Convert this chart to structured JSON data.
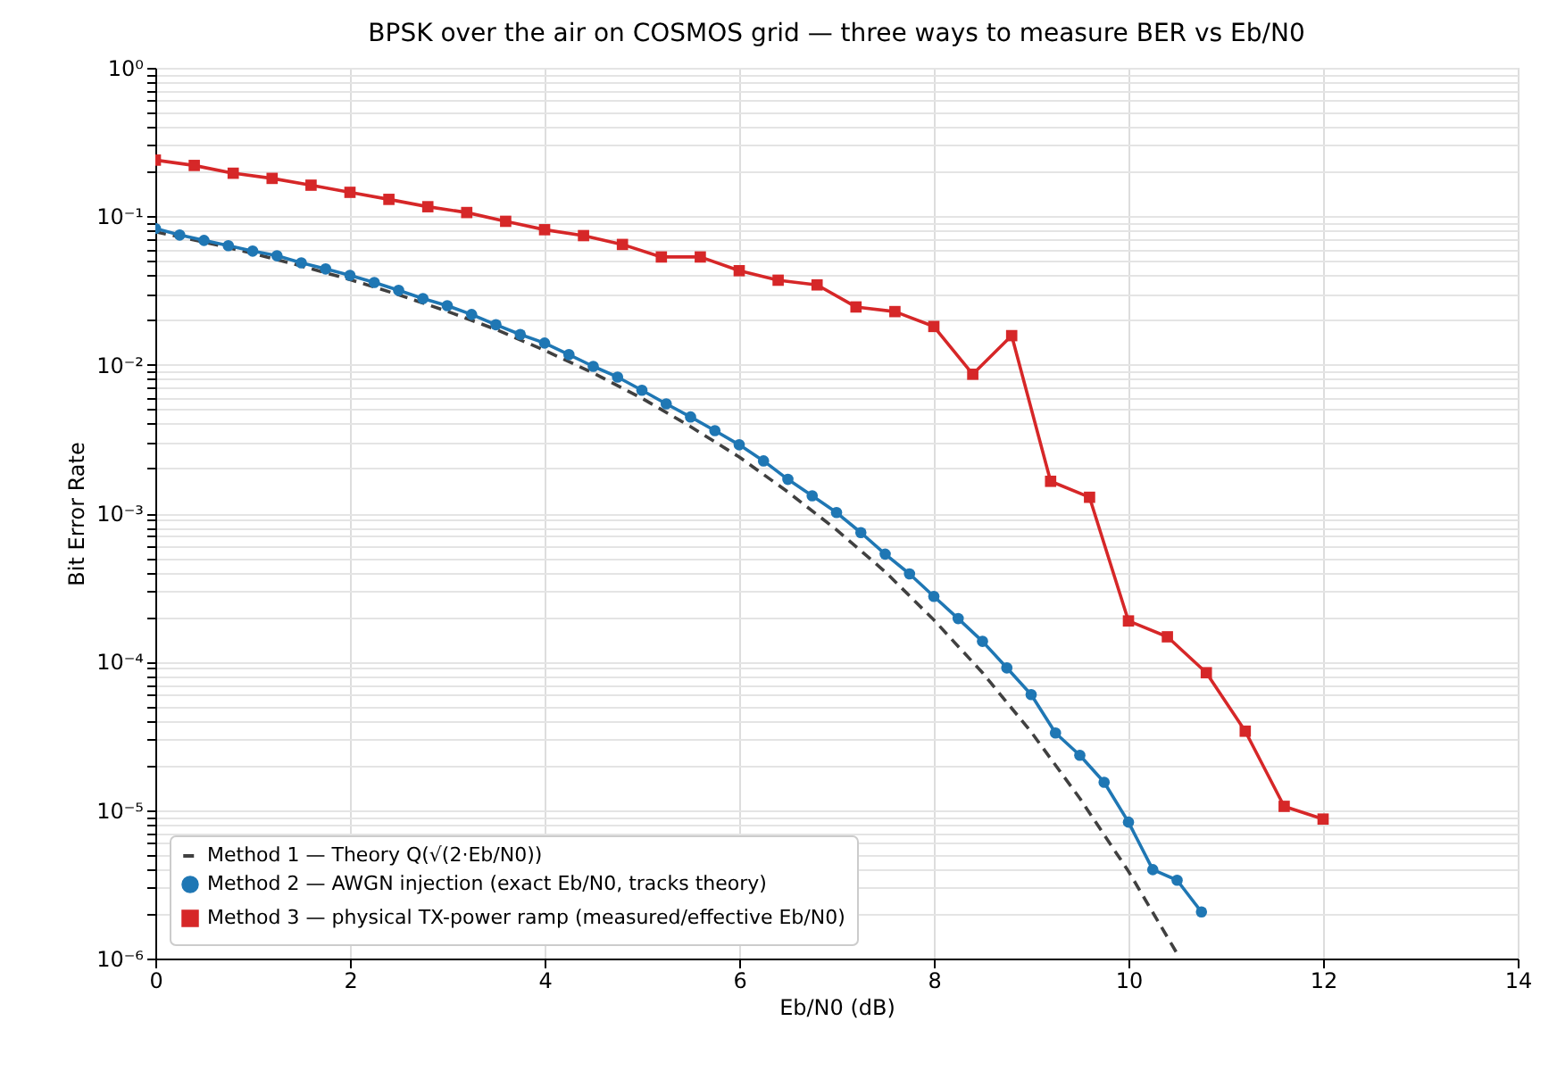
{
  "chart_data": {
    "type": "line",
    "title": "BPSK over the air on COSMOS grid — three ways to measure BER vs Eb/N0",
    "xlabel": "Eb/N0  (dB)",
    "ylabel": "Bit Error Rate",
    "log": "y",
    "grid": true,
    "legend": "bottom left",
    "xlim": [
      0,
      14
    ],
    "xticks": [
      0,
      2,
      4,
      6,
      8,
      10,
      12,
      14
    ],
    "ylim": [
      1e-06,
      1
    ],
    "yticks": [
      {
        "value": 1e-06,
        "label": "10⁻⁶"
      },
      {
        "value": 2e-06,
        "label": null
      },
      {
        "value": 3e-06,
        "label": null
      },
      {
        "value": 4e-06,
        "label": null
      },
      {
        "value": 5e-06,
        "label": null
      },
      {
        "value": 6e-06,
        "label": null
      },
      {
        "value": 7e-06,
        "label": null
      },
      {
        "value": 8e-06,
        "label": null
      },
      {
        "value": 9e-06,
        "label": null
      },
      {
        "value": 1e-05,
        "label": "10⁻⁵"
      },
      {
        "value": 2e-05,
        "label": null
      },
      {
        "value": 3e-05,
        "label": null
      },
      {
        "value": 4e-05,
        "label": null
      },
      {
        "value": 5e-05,
        "label": null
      },
      {
        "value": 6e-05,
        "label": null
      },
      {
        "value": 7e-05,
        "label": null
      },
      {
        "value": 8e-05,
        "label": null
      },
      {
        "value": 9e-05,
        "label": null
      },
      {
        "value": 0.0001,
        "label": "10⁻⁴"
      },
      {
        "value": 0.0002,
        "label": null
      },
      {
        "value": 0.0003,
        "label": null
      },
      {
        "value": 0.0004,
        "label": null
      },
      {
        "value": 0.0005,
        "label": null
      },
      {
        "value": 0.0006,
        "label": null
      },
      {
        "value": 0.0007,
        "label": null
      },
      {
        "value": 0.0008,
        "label": null
      },
      {
        "value": 0.0009,
        "label": null
      },
      {
        "value": 0.001,
        "label": "10⁻³"
      },
      {
        "value": 0.002,
        "label": null
      },
      {
        "value": 0.003,
        "label": null
      },
      {
        "value": 0.004,
        "label": null
      },
      {
        "value": 0.005,
        "label": null
      },
      {
        "value": 0.006,
        "label": null
      },
      {
        "value": 0.007,
        "label": null
      },
      {
        "value": 0.008,
        "label": null
      },
      {
        "value": 0.009,
        "label": null
      },
      {
        "value": 0.01,
        "label": "10⁻²"
      },
      {
        "value": 0.02,
        "label": null
      },
      {
        "value": 0.03,
        "label": null
      },
      {
        "value": 0.04,
        "label": null
      },
      {
        "value": 0.05,
        "label": null
      },
      {
        "value": 0.06,
        "label": null
      },
      {
        "value": 0.07,
        "label": null
      },
      {
        "value": 0.08,
        "label": null
      },
      {
        "value": 0.09,
        "label": null
      },
      {
        "value": 0.1,
        "label": "10⁻¹"
      },
      {
        "value": 0.2,
        "label": null
      },
      {
        "value": 0.3,
        "label": null
      },
      {
        "value": 0.4,
        "label": null
      },
      {
        "value": 0.5,
        "label": null
      },
      {
        "value": 0.6,
        "label": null
      },
      {
        "value": 0.7,
        "label": null
      },
      {
        "value": 0.8,
        "label": null
      },
      {
        "value": 0.9,
        "label": null
      },
      {
        "value": 1,
        "label": "10⁰"
      }
    ],
    "series": [
      {
        "name": "Method 1 — Theory  Q(√(2·Eb/N0))",
        "color": "#404040",
        "marker": "none",
        "line_style": "dashed",
        "x": [
          0,
          0.5,
          1,
          1.5,
          2,
          2.5,
          3,
          3.5,
          4,
          4.5,
          5,
          5.5,
          6,
          6.5,
          7,
          7.5,
          8,
          8.5,
          9,
          9.5,
          10,
          10.5
        ],
        "values": [
          0.0786,
          0.0671,
          0.0563,
          0.0462,
          0.0375,
          0.0296,
          0.0229,
          0.0173,
          0.0125,
          0.00879,
          0.00595,
          0.00383,
          0.00239,
          0.00139,
          0.000773,
          0.000403,
          0.000191,
          8.42e-05,
          3.36e-05,
          1.2e-05,
          3.87e-06,
          1.08e-06
        ]
      },
      {
        "name": "Method 2 — AWGN injection (exact Eb/N0, tracks theory)",
        "color": "#1f77b4",
        "marker": "circle",
        "line_style": "solid",
        "x": [
          0,
          0.25,
          0.5,
          0.75,
          1,
          1.25,
          1.5,
          1.75,
          2,
          2.25,
          2.5,
          2.75,
          3,
          3.25,
          3.5,
          3.75,
          4,
          4.25,
          4.5,
          4.75,
          5,
          5.25,
          5.5,
          5.75,
          6,
          6.25,
          6.5,
          6.75,
          7,
          7.25,
          7.5,
          7.75,
          8,
          8.25,
          8.5,
          8.75,
          9,
          9.25,
          9.5,
          9.75,
          10,
          10.25,
          10.5,
          10.75
        ],
        "values": [
          0.0828,
          0.0748,
          0.0688,
          0.0634,
          0.0583,
          0.0542,
          0.0486,
          0.0442,
          0.04,
          0.0358,
          0.0317,
          0.0279,
          0.025,
          0.0218,
          0.0186,
          0.016,
          0.014,
          0.0117,
          0.00975,
          0.00826,
          0.00673,
          0.00545,
          0.00445,
          0.0036,
          0.00289,
          0.00225,
          0.00169,
          0.00131,
          0.00101,
          0.00074,
          0.00053,
          0.00039,
          0.000275,
          0.000195,
          0.000137,
          9.08e-05,
          6e-05,
          3.31e-05,
          2.34e-05,
          1.54e-05,
          8.3e-06,
          3.97e-06,
          3.37e-06,
          2.06e-06
        ]
      },
      {
        "name": "Method 3 — physical TX-power ramp (measured/effective Eb/N0)",
        "color": "#d62728",
        "marker": "square",
        "line_style": "solid",
        "x": [
          0,
          0.4,
          0.8,
          1.2,
          1.6,
          2,
          2.4,
          2.8,
          3.2,
          3.6,
          4,
          4.4,
          4.8,
          5.2,
          5.6,
          6,
          6.4,
          6.8,
          7.2,
          7.6,
          8,
          8.4,
          8.8,
          9.2,
          9.6,
          10,
          10.4,
          10.8,
          11.2,
          11.6,
          12
        ],
        "values": [
          0.239,
          0.22,
          0.195,
          0.18,
          0.162,
          0.145,
          0.13,
          0.116,
          0.106,
          0.0925,
          0.0812,
          0.0741,
          0.0646,
          0.0532,
          0.0532,
          0.043,
          0.0371,
          0.0345,
          0.0245,
          0.0228,
          0.0181,
          0.00863,
          0.0157,
          0.00164,
          0.00128,
          0.000188,
          0.000147,
          8.42e-05,
          3.4e-05,
          1.06e-05,
          8.7e-06
        ]
      }
    ]
  }
}
